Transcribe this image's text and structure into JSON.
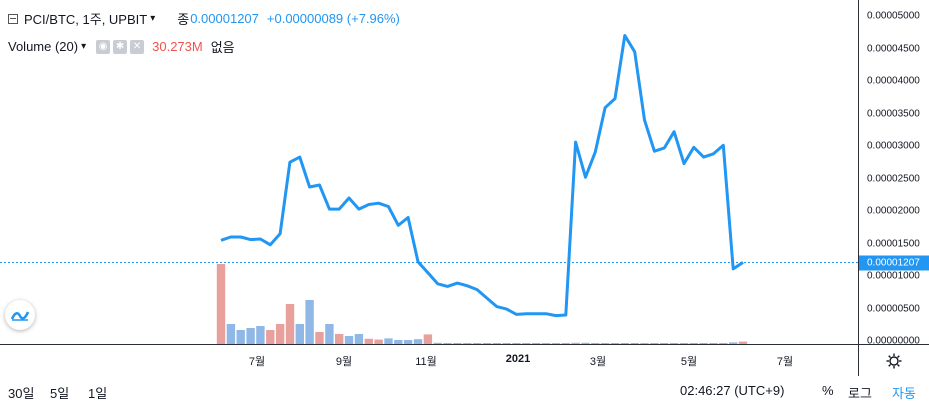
{
  "legend": {
    "symbol": "PCI/BTC, 1주, UPBIT",
    "close_label": "종",
    "close_value": "0.00001207",
    "change": "+0.00000089 (+7.96%)",
    "volume_label": "Volume (20)",
    "volume_value": "30.273M",
    "volume_note": "없음"
  },
  "price_scale": {
    "labels": [
      "0.00005000",
      "0.00004500",
      "0.00004000",
      "0.00003500",
      "0.00003000",
      "0.00002500",
      "0.00002000",
      "0.00001500",
      "0.00001000",
      "0.00000500",
      "0.00000000"
    ],
    "current_price": "0.00001207"
  },
  "time_axis": {
    "labels": [
      "7월",
      "9월",
      "11월",
      "2021",
      "3월",
      "5월",
      "7월"
    ],
    "bold_label": "2021"
  },
  "bottom_bar": {
    "ranges": [
      "30일",
      "5일",
      "1일"
    ],
    "clock": "02:46:27 (UTC+9)",
    "percent": "%",
    "log": "로그",
    "auto": "자동"
  },
  "colors": {
    "line": "#2196f3",
    "volume_up": "#e8a09c",
    "volume_down": "#90b8e6",
    "price_tag": "#2196f3",
    "down_text": "#ef5350"
  },
  "icons": [
    "chart-symbol-icon",
    "chevron-down-icon",
    "eye-icon",
    "gear-icon",
    "close-icon",
    "chart-logo-icon",
    "settings-icon"
  ],
  "chart_data": {
    "type": "line",
    "price_series": [
      1.55e-05,
      1.6e-05,
      1.6e-05,
      1.56e-05,
      1.57e-05,
      1.48e-05,
      1.65e-05,
      2.75e-05,
      2.83e-05,
      2.37e-05,
      2.4e-05,
      2.03e-05,
      2.03e-05,
      2.2e-05,
      2.03e-05,
      2.1e-05,
      2.12e-05,
      2.07e-05,
      1.78e-05,
      1.9e-05,
      1.22e-05,
      1.05e-05,
      8.8e-06,
      8.4e-06,
      8.9e-06,
      8.5e-06,
      7.9e-06,
      6.6e-06,
      5.3e-06,
      4.9e-06,
      4.1e-06,
      4.2e-06,
      4.2e-06,
      4.2e-06,
      3.9e-06,
      4e-06,
      3.06e-05,
      2.52e-05,
      2.91e-05,
      3.59e-05,
      3.73e-05,
      4.7e-05,
      4.45e-05,
      3.4e-05,
      2.92e-05,
      2.97e-05,
      3.22e-05,
      2.73e-05,
      2.98e-05,
      2.83e-05,
      2.88e-05,
      3.01e-05,
      1.11e-05,
      1.21e-05
    ],
    "volume_up": [
      1,
      0,
      0,
      0,
      0,
      1,
      1,
      1,
      0,
      0,
      1,
      0,
      1,
      0,
      0,
      1,
      1,
      0,
      0,
      0,
      0,
      1,
      0,
      0,
      0,
      0,
      0,
      0,
      0,
      0,
      0,
      0,
      0,
      1,
      1,
      1,
      1,
      0,
      0,
      0,
      0,
      0,
      0,
      1,
      0,
      0,
      0,
      0,
      0,
      0,
      0,
      0,
      0,
      1
    ],
    "volume": [
      0.2,
      0.05,
      0.035,
      0.04,
      0.045,
      0.035,
      0.05,
      0.1,
      0.05,
      0.11,
      0.03,
      0.05,
      0.025,
      0.02,
      0.025,
      0.013,
      0.011,
      0.014,
      0.01,
      0.01,
      0.012,
      0.024,
      0.003,
      0.002,
      0.002,
      0.001,
      0.001,
      0.001,
      0.001,
      0.001,
      0.0005,
      0.001,
      0.001,
      0.0005,
      0.002,
      0.001,
      0.003,
      0.003,
      0.001,
      0.001,
      0.002,
      0.002,
      0.001,
      0.001,
      0.002,
      0.001,
      0.001,
      0.001,
      0.001,
      0.001,
      0.001,
      0.001,
      0.004,
      0.006
    ],
    "y_range": [
      0,
      5e-05
    ],
    "current_price": 1.207e-05
  }
}
